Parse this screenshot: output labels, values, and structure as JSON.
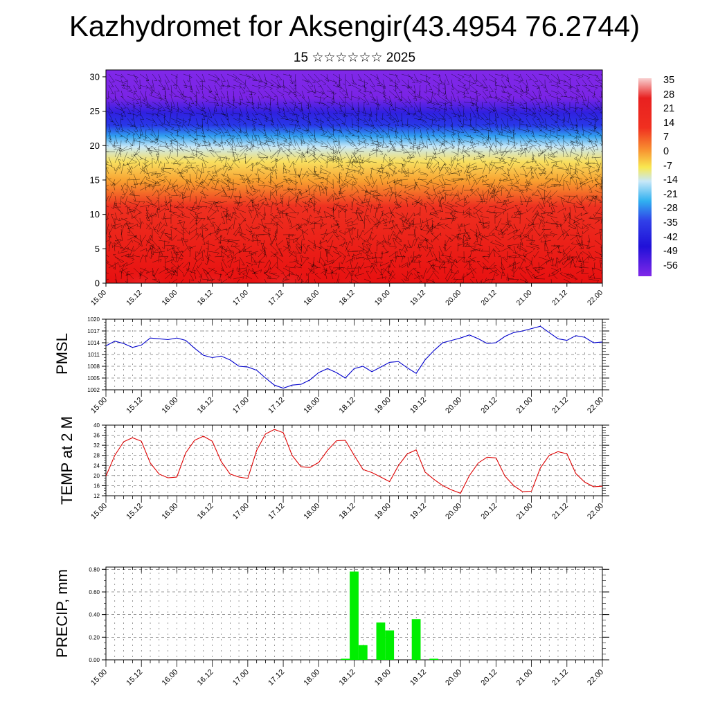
{
  "header": {
    "title": "Kazhydromet for Aksengir(43.4954 76.2744)",
    "subtitle": "15 ☆☆☆☆☆☆ 2025"
  },
  "colors": {
    "pmsl_line": "#0000cc",
    "temp_line": "#dd0000",
    "precip_bar": "#00ee00"
  },
  "chart_data": [
    {
      "type": "heatmap",
      "name": "cross-section temperature and wind",
      "x_tick_labels": [
        "15.00",
        "15.12",
        "16.00",
        "16.12",
        "17.00",
        "17.12",
        "18.00",
        "18.12",
        "19.00",
        "19.12",
        "20.00",
        "20.12",
        "21.00",
        "21.12",
        "22.00"
      ],
      "y_ticks": [
        0,
        5,
        10,
        15,
        20,
        25,
        30
      ],
      "ylim": [
        0,
        31
      ],
      "colorbar_ticks": [
        35,
        28,
        21,
        14,
        7,
        0,
        -7,
        -14,
        -21,
        -28,
        -35,
        -42,
        -49,
        -56
      ],
      "colorbar_range": [
        -60,
        38
      ],
      "wind_barbs": true
    },
    {
      "type": "line",
      "ylabel": "PMSL",
      "x_tick_labels": [
        "15.00",
        "15.12",
        "16.00",
        "16.12",
        "17.00",
        "17.12",
        "18.00",
        "18.12",
        "19.00",
        "19.12",
        "20.00",
        "20.12",
        "21.00",
        "21.12",
        "22.00"
      ],
      "y_ticks": [
        1002,
        1005,
        1008,
        1011,
        1014,
        1017,
        1020
      ],
      "ylim": [
        1002,
        1020
      ],
      "x": [
        0,
        3,
        6,
        9,
        12,
        15,
        18,
        21,
        24,
        27,
        30,
        33,
        36,
        39,
        42,
        45,
        48,
        51,
        54,
        57,
        60,
        63,
        66,
        69,
        72,
        75,
        78,
        81,
        84,
        87,
        90,
        93,
        96,
        99,
        102,
        105,
        108,
        111,
        114,
        117,
        120,
        123,
        126,
        129,
        132,
        135,
        138,
        141,
        144,
        147,
        150,
        153,
        156,
        159,
        162,
        165,
        168
      ],
      "series": [
        {
          "values": [
            1013.2,
            1014.4,
            1013.8,
            1012.8,
            1013.4,
            1015.2,
            1015.0,
            1014.8,
            1015.2,
            1014.6,
            1012.6,
            1010.8,
            1010.2,
            1010.6,
            1009.6,
            1008.0,
            1007.8,
            1007.0,
            1005.0,
            1003.2,
            1002.4,
            1003.2,
            1003.4,
            1004.5,
            1006.4,
            1007.4,
            1006.4,
            1005.0,
            1007.4,
            1008.0,
            1006.6,
            1007.8,
            1009.0,
            1009.2,
            1007.6,
            1006.2,
            1009.6,
            1012.0,
            1014.0,
            1014.6,
            1015.2,
            1016.0,
            1015.0,
            1013.8,
            1014.0,
            1015.6,
            1016.6,
            1017.0,
            1017.6,
            1018.2,
            1016.6,
            1015.0,
            1014.6,
            1015.8,
            1015.4,
            1014.0,
            1014.2
          ]
        }
      ]
    },
    {
      "type": "line",
      "ylabel": "TEMP at 2 M",
      "x_tick_labels": [
        "15.00",
        "15.12",
        "16.00",
        "16.12",
        "17.00",
        "17.12",
        "18.00",
        "18.12",
        "19.00",
        "19.12",
        "20.00",
        "20.12",
        "21.00",
        "21.12",
        "22.00"
      ],
      "y_ticks": [
        12,
        16,
        20,
        24,
        28,
        32,
        36,
        40
      ],
      "ylim": [
        12,
        40
      ],
      "x": [
        0,
        3,
        6,
        9,
        12,
        15,
        18,
        21,
        24,
        27,
        30,
        33,
        36,
        39,
        42,
        45,
        48,
        51,
        54,
        57,
        60,
        63,
        66,
        69,
        72,
        75,
        78,
        81,
        84,
        87,
        90,
        93,
        96,
        99,
        102,
        105,
        108,
        111,
        114,
        117,
        120,
        123,
        126,
        129,
        132,
        135,
        138,
        141,
        144,
        147,
        150,
        153,
        156,
        159,
        162,
        165,
        168
      ],
      "series": [
        {
          "values": [
            19.8,
            28.0,
            33.4,
            35.0,
            33.6,
            25.0,
            20.6,
            19.1,
            19.4,
            29.0,
            34.0,
            35.6,
            33.6,
            25.6,
            20.6,
            19.4,
            18.9,
            30.0,
            36.5,
            38.3,
            37.0,
            28.0,
            23.5,
            23.2,
            25.2,
            30.0,
            33.8,
            34.0,
            28.0,
            22.4,
            21.2,
            19.4,
            17.6,
            24.0,
            28.6,
            30.2,
            21.4,
            18.5,
            16.0,
            14.3,
            13.0,
            20.0,
            25.0,
            27.3,
            27.0,
            19.8,
            16.0,
            13.6,
            13.8,
            23.0,
            28.0,
            29.5,
            28.6,
            20.8,
            17.4,
            15.6,
            15.8
          ]
        }
      ]
    },
    {
      "type": "bar",
      "ylabel": "PRECIP, mm",
      "x_tick_labels": [
        "15.00",
        "15.12",
        "16.00",
        "16.12",
        "17.00",
        "17.12",
        "18.00",
        "18.12",
        "19.00",
        "19.12",
        "20.00",
        "20.12",
        "21.00",
        "21.12",
        "22.00"
      ],
      "y_ticks": [
        "0.00",
        "0.20",
        "0.40",
        "0.60",
        "0.80"
      ],
      "ylim": [
        0,
        0.82
      ],
      "x": [
        81,
        84,
        87,
        93,
        96,
        105,
        111
      ],
      "values": [
        0.01,
        0.78,
        0.13,
        0.33,
        0.26,
        0.36,
        0.01
      ]
    }
  ]
}
